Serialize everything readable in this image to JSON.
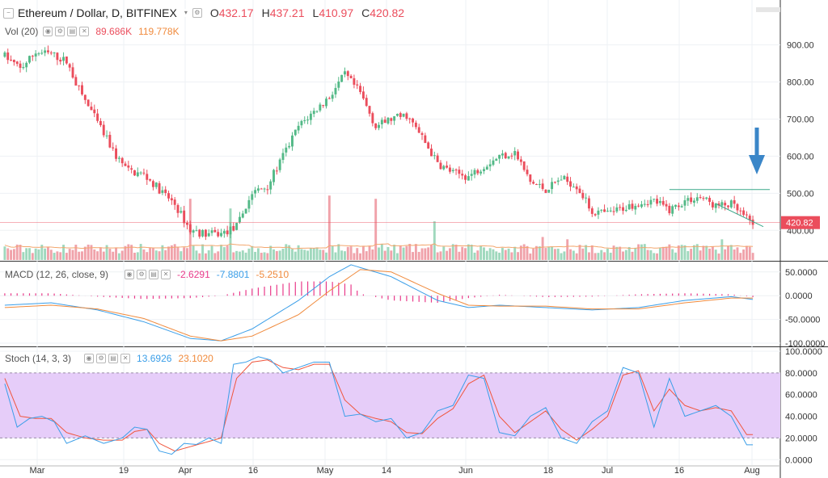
{
  "header": {
    "symbol_title": "Ethereum / Dollar, D, BITFINEX",
    "ohlc": [
      {
        "label": "O",
        "value": "432.17"
      },
      {
        "label": "H",
        "value": "437.21"
      },
      {
        "label": "L",
        "value": "410.97"
      },
      {
        "label": "C",
        "value": "420.82"
      }
    ]
  },
  "colors": {
    "up": "#53b987",
    "down": "#eb4d5c",
    "up_vol": "#9fd8bd",
    "down_vol": "#f0a2aa",
    "ma_vol": "#f3a66d",
    "macd_line": "#3a9ee8",
    "signal_line": "#f08a3c",
    "hist": "#e93a8a",
    "stoch_k": "#3a9ee8",
    "stoch_d": "#f0553c",
    "band": "#e6cdf9",
    "arrow": "#3a86c8",
    "grid": "#eef1f4",
    "last_price": "#eb4d5c"
  },
  "vol": {
    "label": "Vol (20)",
    "value1": "89.686K",
    "value2": "119.778K"
  },
  "macd": {
    "label": "MACD (12, 26, close, 9)",
    "hist": "-2.6291",
    "macd": "-7.8801",
    "signal": "-5.2510"
  },
  "stoch": {
    "label": "Stoch (14, 3, 3)",
    "k": "13.6926",
    "d": "23.1020"
  },
  "price_axis": {
    "ticks": [
      "900.00",
      "800.00",
      "700.00",
      "600.00",
      "500.00",
      "400.00"
    ],
    "last": "420.82"
  },
  "macd_axis": {
    "ticks": [
      "50.0000",
      "0.0000",
      "-50.0000",
      "-100.0000"
    ]
  },
  "stoch_axis": {
    "ticks": [
      "100.0000",
      "80.0000",
      "60.0000",
      "40.0000",
      "20.0000",
      "0.0000"
    ]
  },
  "time_axis": {
    "labels": [
      "Mar",
      "19",
      "Apr",
      "16",
      "May",
      "14",
      "Jun",
      "18",
      "Jul",
      "16",
      "Aug"
    ]
  },
  "chart_data": {
    "type": "candlestick",
    "title": "Ethereum / Dollar, D, BITFINEX",
    "price_ylim": [
      320,
      960
    ],
    "price_anchors": [
      [
        0,
        870
      ],
      [
        5,
        835
      ],
      [
        10,
        880
      ],
      [
        15,
        875
      ],
      [
        20,
        855
      ],
      [
        24,
        780
      ],
      [
        30,
        690
      ],
      [
        36,
        600
      ],
      [
        40,
        560
      ],
      [
        45,
        550
      ],
      [
        50,
        510
      ],
      [
        55,
        470
      ],
      [
        60,
        400
      ],
      [
        65,
        390
      ],
      [
        70,
        390
      ],
      [
        75,
        410
      ],
      [
        80,
        500
      ],
      [
        85,
        520
      ],
      [
        90,
        600
      ],
      [
        95,
        680
      ],
      [
        100,
        720
      ],
      [
        105,
        760
      ],
      [
        110,
        820
      ],
      [
        115,
        770
      ],
      [
        120,
        680
      ],
      [
        125,
        700
      ],
      [
        130,
        710
      ],
      [
        135,
        650
      ],
      [
        140,
        580
      ],
      [
        145,
        555
      ],
      [
        150,
        545
      ],
      [
        155,
        575
      ],
      [
        160,
        600
      ],
      [
        165,
        610
      ],
      [
        170,
        530
      ],
      [
        175,
        510
      ],
      [
        180,
        540
      ],
      [
        185,
        520
      ],
      [
        190,
        450
      ],
      [
        195,
        445
      ],
      [
        200,
        460
      ],
      [
        205,
        475
      ],
      [
        210,
        480
      ],
      [
        215,
        455
      ],
      [
        220,
        480
      ],
      [
        225,
        490
      ],
      [
        230,
        465
      ],
      [
        235,
        470
      ],
      [
        240,
        430
      ],
      [
        242,
        421
      ]
    ],
    "macd_ylim": [
      -105,
      70
    ],
    "macd_anchors": [
      [
        0,
        -20
      ],
      [
        15,
        -15
      ],
      [
        30,
        -30
      ],
      [
        45,
        -55
      ],
      [
        60,
        -90
      ],
      [
        70,
        -95
      ],
      [
        80,
        -70
      ],
      [
        95,
        -10
      ],
      [
        105,
        40
      ],
      [
        112,
        65
      ],
      [
        125,
        40
      ],
      [
        140,
        -10
      ],
      [
        150,
        -25
      ],
      [
        160,
        -20
      ],
      [
        175,
        -25
      ],
      [
        190,
        -30
      ],
      [
        205,
        -25
      ],
      [
        220,
        -10
      ],
      [
        235,
        -2
      ],
      [
        242,
        -8
      ]
    ],
    "signal_anchors": [
      [
        0,
        -25
      ],
      [
        15,
        -20
      ],
      [
        30,
        -28
      ],
      [
        45,
        -48
      ],
      [
        60,
        -85
      ],
      [
        70,
        -95
      ],
      [
        80,
        -85
      ],
      [
        95,
        -40
      ],
      [
        105,
        10
      ],
      [
        115,
        55
      ],
      [
        125,
        50
      ],
      [
        140,
        5
      ],
      [
        150,
        -20
      ],
      [
        160,
        -22
      ],
      [
        175,
        -22
      ],
      [
        190,
        -28
      ],
      [
        205,
        -28
      ],
      [
        220,
        -15
      ],
      [
        235,
        -5
      ],
      [
        242,
        -5
      ]
    ],
    "stoch_ylim": [
      -5,
      103
    ],
    "stoch_k_anchors": [
      [
        0,
        70
      ],
      [
        4,
        30
      ],
      [
        8,
        38
      ],
      [
        12,
        40
      ],
      [
        16,
        35
      ],
      [
        20,
        15
      ],
      [
        26,
        22
      ],
      [
        32,
        15
      ],
      [
        38,
        20
      ],
      [
        42,
        30
      ],
      [
        46,
        28
      ],
      [
        50,
        8
      ],
      [
        54,
        5
      ],
      [
        58,
        15
      ],
      [
        62,
        14
      ],
      [
        66,
        20
      ],
      [
        70,
        15
      ],
      [
        74,
        88
      ],
      [
        78,
        90
      ],
      [
        82,
        95
      ],
      [
        86,
        92
      ],
      [
        90,
        80
      ],
      [
        95,
        85
      ],
      [
        100,
        90
      ],
      [
        105,
        90
      ],
      [
        110,
        40
      ],
      [
        115,
        42
      ],
      [
        120,
        35
      ],
      [
        125,
        38
      ],
      [
        130,
        20
      ],
      [
        135,
        25
      ],
      [
        140,
        45
      ],
      [
        145,
        50
      ],
      [
        150,
        78
      ],
      [
        155,
        75
      ],
      [
        160,
        25
      ],
      [
        165,
        22
      ],
      [
        170,
        40
      ],
      [
        175,
        48
      ],
      [
        180,
        20
      ],
      [
        185,
        15
      ],
      [
        190,
        35
      ],
      [
        195,
        45
      ],
      [
        200,
        85
      ],
      [
        205,
        80
      ],
      [
        210,
        30
      ],
      [
        215,
        75
      ],
      [
        220,
        40
      ],
      [
        225,
        45
      ],
      [
        230,
        50
      ],
      [
        235,
        40
      ],
      [
        240,
        13.7
      ]
    ],
    "stoch_d_anchors": [
      [
        0,
        75
      ],
      [
        5,
        40
      ],
      [
        10,
        38
      ],
      [
        15,
        38
      ],
      [
        20,
        25
      ],
      [
        26,
        20
      ],
      [
        32,
        18
      ],
      [
        38,
        18
      ],
      [
        42,
        26
      ],
      [
        46,
        28
      ],
      [
        50,
        15
      ],
      [
        55,
        8
      ],
      [
        60,
        12
      ],
      [
        65,
        16
      ],
      [
        70,
        20
      ],
      [
        75,
        75
      ],
      [
        80,
        90
      ],
      [
        85,
        92
      ],
      [
        90,
        85
      ],
      [
        95,
        83
      ],
      [
        100,
        88
      ],
      [
        105,
        88
      ],
      [
        110,
        55
      ],
      [
        115,
        42
      ],
      [
        120,
        38
      ],
      [
        125,
        35
      ],
      [
        130,
        25
      ],
      [
        135,
        24
      ],
      [
        140,
        38
      ],
      [
        145,
        47
      ],
      [
        150,
        70
      ],
      [
        155,
        78
      ],
      [
        160,
        40
      ],
      [
        165,
        25
      ],
      [
        170,
        35
      ],
      [
        175,
        45
      ],
      [
        180,
        28
      ],
      [
        185,
        18
      ],
      [
        190,
        28
      ],
      [
        195,
        40
      ],
      [
        200,
        78
      ],
      [
        205,
        82
      ],
      [
        210,
        45
      ],
      [
        215,
        65
      ],
      [
        220,
        50
      ],
      [
        225,
        45
      ],
      [
        230,
        48
      ],
      [
        235,
        45
      ],
      [
        240,
        23.1
      ]
    ],
    "vol_ylim": [
      0,
      300000
    ],
    "vol_spikes": [
      [
        60,
        0.95
      ],
      [
        73,
        0.8
      ],
      [
        105,
        1.0
      ],
      [
        120,
        0.95
      ],
      [
        139,
        0.6
      ],
      [
        174,
        0.5
      ],
      [
        182,
        0.45
      ],
      [
        232,
        0.45
      ]
    ],
    "stoch_bands": [
      20,
      80
    ],
    "resistance_level": 510
  }
}
